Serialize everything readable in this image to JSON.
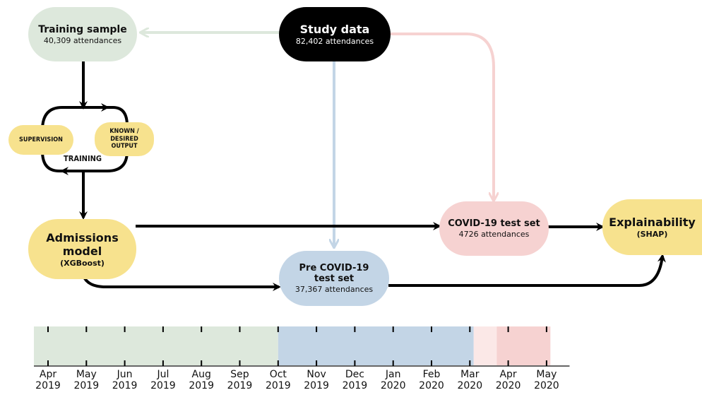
{
  "study_data": {
    "title": "Study data",
    "subtitle": "82,402 attendances"
  },
  "training_sample": {
    "title": "Training sample",
    "subtitle": "40,309 attendances"
  },
  "training_loop": {
    "supervision": "SUPERVISION",
    "known_output": [
      "KNOWN /",
      "DESIRED",
      "OUTPUT"
    ],
    "label": "TRAINING"
  },
  "admissions_model": {
    "title_line1": "Admissions",
    "title_line2": "model",
    "subtitle": "(XGBoost)"
  },
  "pre_covid": {
    "title_line1": "Pre COVID-19",
    "title_line2": "test set",
    "subtitle": "37,367 attendances"
  },
  "covid_test": {
    "title": "COVID-19 test set",
    "subtitle": "4726 attendances"
  },
  "explainability": {
    "title": "Explainability",
    "subtitle": "(SHAP)"
  },
  "colors": {
    "green": "#dde8dc",
    "blue": "#c3d5e6",
    "pink": "#f6d2d1",
    "pale_pink": "#fbe8e7",
    "yellow": "#f7e28e",
    "black": "#000000"
  },
  "timeline": {
    "months": [
      [
        "Apr",
        "2019"
      ],
      [
        "May",
        "2019"
      ],
      [
        "Jun",
        "2019"
      ],
      [
        "Jul",
        "2019"
      ],
      [
        "Aug",
        "2019"
      ],
      [
        "Sep",
        "2019"
      ],
      [
        "Oct",
        "2019"
      ],
      [
        "Nov",
        "2019"
      ],
      [
        "Dec",
        "2019"
      ],
      [
        "Jan",
        "2020"
      ],
      [
        "Feb",
        "2020"
      ],
      [
        "Mar",
        "2020"
      ],
      [
        "Apr",
        "2020"
      ],
      [
        "May",
        "2020"
      ]
    ],
    "segments": [
      {
        "period": "training",
        "start_month": 0,
        "end_month": 6,
        "color": "#dde8dc"
      },
      {
        "period": "pre_covid",
        "start_month": 6,
        "end_month": 11.1,
        "color": "#c3d5e6"
      },
      {
        "period": "gap",
        "start_month": 11.1,
        "end_month": 11.7,
        "color": "#fbe8e7"
      },
      {
        "period": "covid",
        "start_month": 11.7,
        "end_month": 13.1,
        "color": "#f6d2d1"
      }
    ]
  }
}
